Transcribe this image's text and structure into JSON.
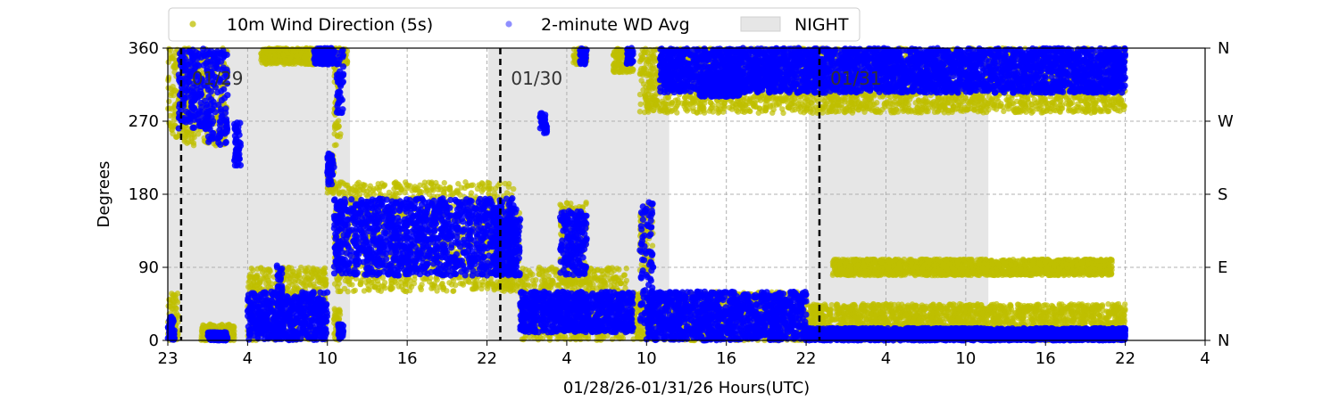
{
  "chart_data": {
    "type": "scatter",
    "title": "",
    "xlabel": "01/28/26-01/31/26  Hours(UTC)",
    "ylabel": "Degrees",
    "x_unit": "hours",
    "xlim": [
      23,
      101
    ],
    "ylim": [
      0,
      360
    ],
    "x_ticks": [
      {
        "value": 23,
        "label": "23"
      },
      {
        "value": 29,
        "label": "4"
      },
      {
        "value": 35,
        "label": "10"
      },
      {
        "value": 41,
        "label": "16"
      },
      {
        "value": 47,
        "label": "22"
      },
      {
        "value": 53,
        "label": "4"
      },
      {
        "value": 59,
        "label": "10"
      },
      {
        "value": 65,
        "label": "16"
      },
      {
        "value": 71,
        "label": "22"
      },
      {
        "value": 77,
        "label": "4"
      },
      {
        "value": 83,
        "label": "10"
      },
      {
        "value": 89,
        "label": "16"
      },
      {
        "value": 95,
        "label": "22"
      },
      {
        "value": 101,
        "label": "4"
      }
    ],
    "y_ticks": [
      0,
      90,
      180,
      270,
      360
    ],
    "y2_ticks": [
      {
        "value": 0,
        "label": "N"
      },
      {
        "value": 90,
        "label": "E"
      },
      {
        "value": 180,
        "label": "S"
      },
      {
        "value": 270,
        "label": "W"
      },
      {
        "value": 360,
        "label": "N"
      }
    ],
    "grid": true,
    "legend_position": "top",
    "day_markers": [
      {
        "x": 24,
        "label": "01/29"
      },
      {
        "x": 48,
        "label": "01/30"
      },
      {
        "x": 72,
        "label": "01/31"
      }
    ],
    "night_spans": [
      [
        23,
        36.7
      ],
      [
        47.1,
        60.7
      ],
      [
        71.2,
        84.7
      ]
    ],
    "series": [
      {
        "name": "10m Wind Direction (5s)",
        "color": "#bfbf00",
        "segments": [
          {
            "x": [
              23.0,
              23.5,
              24.0,
              25.0
            ],
            "lo": 250,
            "hi": 360
          },
          {
            "x": [
              23.0,
              23.8
            ],
            "lo": 0,
            "hi": 60
          },
          {
            "x": [
              24.2,
              25.5,
              26.5,
              27.5
            ],
            "lo": 240,
            "hi": 360
          },
          {
            "x": [
              25.5,
              28.0
            ],
            "lo": 0,
            "hi": 20
          },
          {
            "x": [
              29.0,
              29.5,
              30.5,
              31.0,
              31.5,
              32.5,
              34.0,
              35.0
            ],
            "lo": 0,
            "hi": 90
          },
          {
            "x": [
              30.0,
              33.0,
              35.0,
              36.5
            ],
            "lo": 340,
            "hi": 360
          },
          {
            "x": [
              35.5,
              36.0
            ],
            "lo": 240,
            "hi": 350
          },
          {
            "x": [
              35.0,
              35.5
            ],
            "lo": 180,
            "hi": 230
          },
          {
            "x": [
              35.5,
              36.0
            ],
            "lo": 0,
            "hi": 40
          },
          {
            "x": [
              35.5,
              36.5,
              37.5,
              38.5,
              39.5,
              40.5,
              41.5,
              42.5,
              43.5,
              44.5,
              45.5,
              46.5,
              47.5,
              48.5,
              49.0
            ],
            "lo": 60,
            "hi": 195
          },
          {
            "x": [
              48.0,
              49.0,
              49.5
            ],
            "lo": 60,
            "hi": 160
          },
          {
            "x": [
              49.5,
              50.0,
              51.0,
              51.5,
              52.5,
              53.0,
              54.0,
              54.5,
              55.5,
              56.5,
              57.5
            ],
            "lo": 0,
            "hi": 90
          },
          {
            "x": [
              52.5,
              53.5,
              54.0,
              54.5
            ],
            "lo": 70,
            "hi": 170
          },
          {
            "x": [
              53.5,
              54.5
            ],
            "lo": 340,
            "hi": 360
          },
          {
            "x": [
              58.0,
              59.0,
              60.0,
              61.0,
              62.0,
              63.0,
              64.0,
              65.0,
              66.0,
              67.0,
              68.0,
              69.0,
              70.0,
              71.0
            ],
            "lo": 0,
            "hi": 60
          },
          {
            "x": [
              58.5,
              59.0,
              59.5
            ],
            "lo": 80,
            "hi": 170
          },
          {
            "x": [
              56.5,
              57.0,
              57.5,
              58.0
            ],
            "lo": 330,
            "hi": 360
          },
          {
            "x": [
              58.5,
              60.0,
              61.0,
              62.0,
              63.0,
              64.0,
              65.0,
              66.0,
              67.0,
              68.0,
              69.0,
              70.0,
              71.0,
              72.0,
              73.0,
              74.0,
              75.0,
              76.0,
              77.0,
              78.0,
              79.0,
              80.0,
              81.0,
              82.0,
              83.0,
              84.0,
              85.0,
              86.0,
              87.0,
              88.0,
              89.0,
              90.0,
              91.0,
              92.0,
              93.0,
              94.0,
              95.0
            ],
            "lo": 280,
            "hi": 360
          },
          {
            "x": [
              71.0,
              73.0,
              75.0,
              77.0,
              79.0,
              81.0,
              83.0,
              85.0,
              87.0,
              89.0,
              91.0,
              93.0,
              95.0
            ],
            "lo": 0,
            "hi": 45
          },
          {
            "x": [
              73.0,
              76.0,
              79.0,
              82.0,
              85.0,
              88.0,
              91.0,
              94.0
            ],
            "lo": 80,
            "hi": 100
          }
        ]
      },
      {
        "name": "2-minute WD Avg",
        "color": "#0000ff",
        "segments": [
          {
            "x": [
              23.0,
              23.5
            ],
            "lo": 0,
            "hi": 30
          },
          {
            "x": [
              23.8,
              24.2,
              25.0,
              26.0
            ],
            "lo": 260,
            "hi": 360
          },
          {
            "x": [
              26.0,
              26.5,
              27.5
            ],
            "lo": 240,
            "hi": 360
          },
          {
            "x": [
              28.0,
              28.5
            ],
            "lo": 215,
            "hi": 270
          },
          {
            "x": [
              26.0,
              27.5
            ],
            "lo": 0,
            "hi": 10
          },
          {
            "x": [
              29.0,
              29.5,
              30.5,
              31.0,
              31.5,
              32.0,
              33.0,
              34.0,
              35.0
            ],
            "lo": 0,
            "hi": 60
          },
          {
            "x": [
              31.2,
              31.6
            ],
            "lo": 20,
            "hi": 100
          },
          {
            "x": [
              34.0,
              35.5
            ],
            "lo": 340,
            "hi": 360
          },
          {
            "x": [
              35.7,
              36.2
            ],
            "lo": 280,
            "hi": 360
          },
          {
            "x": [
              35.0,
              35.5
            ],
            "lo": 190,
            "hi": 230
          },
          {
            "x": [
              35.8,
              36.2
            ],
            "lo": 0,
            "hi": 20
          },
          {
            "x": [
              35.5,
              36.5,
              37.5,
              38.5,
              39.5,
              40.5,
              41.5,
              42.5,
              43.5,
              44.5,
              45.5,
              46.5,
              47.5,
              48.5,
              49.2
            ],
            "lo": 80,
            "hi": 175
          },
          {
            "x": [
              47.5,
              48.5,
              49.5
            ],
            "lo": 80,
            "hi": 150
          },
          {
            "x": [
              49.5,
              50.0,
              51.0,
              51.5,
              52.5,
              53.0,
              53.5,
              54.0,
              54.5,
              55.5,
              56.5,
              57.5,
              58.0
            ],
            "lo": 10,
            "hi": 60
          },
          {
            "x": [
              52.5,
              53.5,
              54.5
            ],
            "lo": 80,
            "hi": 160
          },
          {
            "x": [
              54.0,
              54.5
            ],
            "lo": 340,
            "hi": 360
          },
          {
            "x": [
              51.0,
              51.5
            ],
            "lo": 255,
            "hi": 280
          },
          {
            "x": [
              58.5,
              59.0,
              59.5
            ],
            "lo": 20,
            "hi": 170
          },
          {
            "x": [
              59.0,
              60.0,
              61.0,
              62.0,
              63.0,
              64.0,
              65.0,
              66.0,
              67.0,
              68.0,
              69.0,
              70.0,
              71.0
            ],
            "lo": 0,
            "hi": 60
          },
          {
            "x": [
              57.5,
              58.0
            ],
            "lo": 340,
            "hi": 360
          },
          {
            "x": [
              60.0,
              61.0,
              62.0,
              63.0,
              64.0,
              65.0,
              66.0,
              67.0,
              68.0,
              69.0,
              70.0,
              71.0,
              72.0,
              73.0,
              74.0,
              75.0,
              76.0,
              77.0,
              78.0,
              79.0,
              80.0,
              81.0,
              82.0,
              83.0,
              84.0,
              85.0,
              86.0,
              87.0,
              88.0,
              89.0,
              90.0,
              91.0,
              92.0,
              93.0,
              94.0,
              95.0
            ],
            "lo": 305,
            "hi": 360
          },
          {
            "x": [
              63.0,
              64.0,
              65.0,
              66.0
            ],
            "lo": 300,
            "hi": 330
          },
          {
            "x": [
              71.0,
              73.0,
              75.0,
              77.0,
              79.0,
              81.0,
              83.0,
              85.0,
              87.0,
              89.0,
              91.0,
              93.0,
              95.0
            ],
            "lo": 0,
            "hi": 15
          }
        ]
      }
    ],
    "legend": [
      {
        "label": "10m Wind Direction (5s)",
        "kind": "marker",
        "color": "#bfbf00"
      },
      {
        "label": "2-minute WD Avg",
        "kind": "marker",
        "color": "#6a6aff"
      },
      {
        "label": "NIGHT",
        "kind": "patch",
        "color": "#e6e6e6"
      }
    ]
  }
}
